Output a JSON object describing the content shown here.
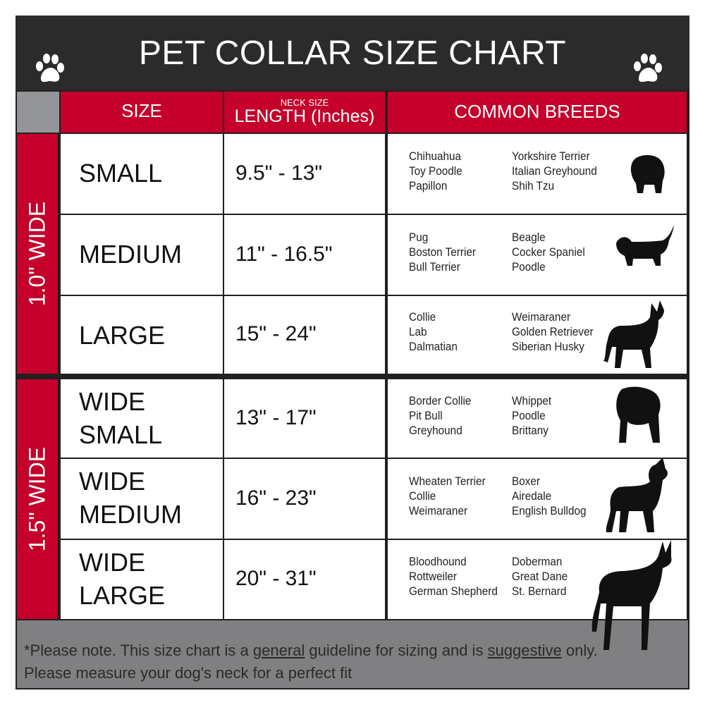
{
  "title": "PET COLLAR SIZE CHART",
  "colors": {
    "accent": "#c4002b",
    "header_bg": "#2b2b2b",
    "footer_bg": "#808082",
    "corner": "#939598"
  },
  "columns": {
    "size": "SIZE",
    "length_small": "NECK SIZE",
    "length": "LENGTH (Inches)",
    "breeds": "COMMON BREEDS"
  },
  "groups": [
    {
      "label": "1.0\" WIDE"
    },
    {
      "label": "1.5\" WIDE"
    }
  ],
  "rows": [
    {
      "size": "SMALL",
      "size2": "",
      "length": "9.5\" - 13\"",
      "breeds_a": [
        "Chihuahua",
        "Toy Poodle",
        "Papillon"
      ],
      "breeds_b": [
        "Yorkshire Terrier",
        "Italian Greyhound",
        "Shih Tzu"
      ],
      "icon": "small-dog-icon"
    },
    {
      "size": "MEDIUM",
      "size2": "",
      "length": "11\" - 16.5\"",
      "breeds_a": [
        "Pug",
        "Boston Terrier",
        "Bull Terrier"
      ],
      "breeds_b": [
        "Beagle",
        "Cocker Spaniel",
        "Poodle"
      ],
      "icon": "dachshund-icon"
    },
    {
      "size": "LARGE",
      "size2": "",
      "length": "15\" - 24\"",
      "breeds_a": [
        "Collie",
        "Lab",
        "Dalmatian"
      ],
      "breeds_b": [
        "Weimaraner",
        "Golden Retriever",
        "Siberian Husky"
      ],
      "icon": "shepherd-dog-icon"
    },
    {
      "size": "WIDE",
      "size2": "SMALL",
      "length": "13\" - 17\"",
      "breeds_a": [
        "Border Collie",
        "Pit Bull",
        "Greyhound"
      ],
      "breeds_b": [
        "Whippet",
        "Poodle",
        "Brittany"
      ],
      "icon": "bulldog-icon"
    },
    {
      "size": "WIDE",
      "size2": "MEDIUM",
      "length": "16\" - 23\"",
      "breeds_a": [
        "Wheaten Terrier",
        "Collie",
        "Weimaraner"
      ],
      "breeds_b": [
        "Boxer",
        "Airedale",
        "English Bulldog"
      ],
      "icon": "pitbull-icon"
    },
    {
      "size": "WIDE",
      "size2": "LARGE",
      "length": "20\" - 31\"",
      "breeds_a": [
        "Bloodhound",
        "Rottweiler",
        "German Shepherd"
      ],
      "breeds_b": [
        "Doberman",
        "Great Dane",
        "St. Bernard"
      ],
      "icon": "doberman-icon"
    }
  ],
  "footer": {
    "p1": "*Please note. This size chart is a",
    "u1": "general",
    "p2": "guideline for sizing and is",
    "u2": "suggestive",
    "p3": "only.",
    "line2": "Please measure your dog's neck for a perfect fit"
  }
}
